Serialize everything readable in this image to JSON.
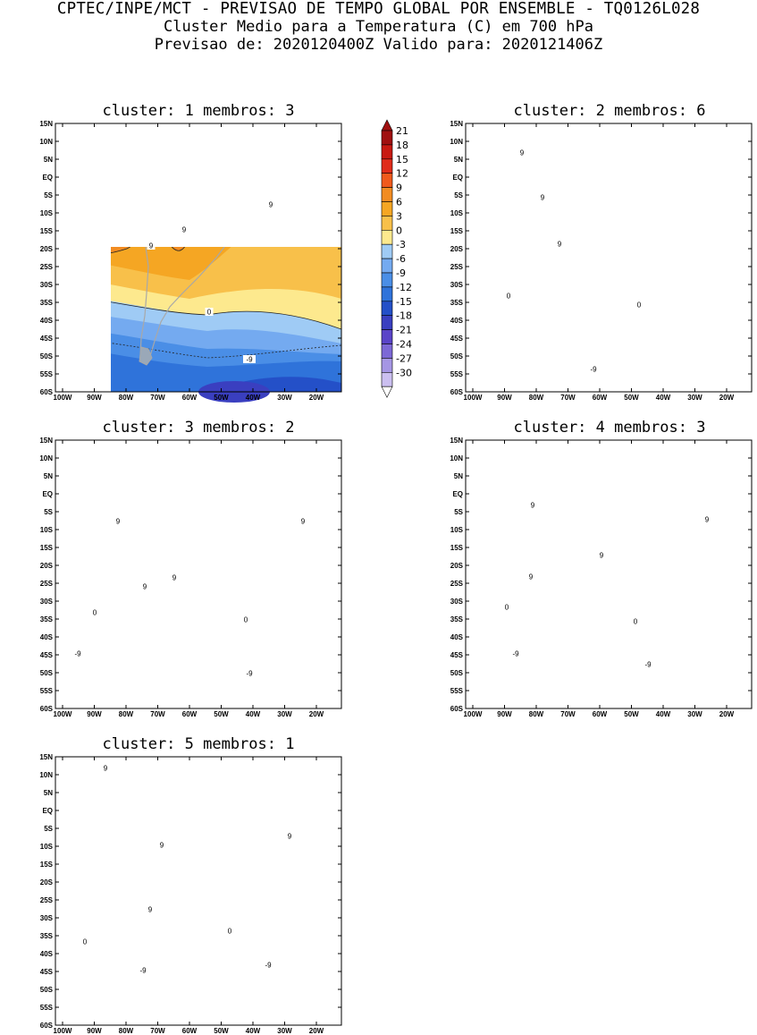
{
  "header": {
    "line1": "CPTEC/INPE/MCT - PREVISAO DE TEMPO GLOBAL POR ENSEMBLE - TQ0126L028",
    "line2": "Cluster Medio para a Temperatura (C) em 700 hPa",
    "line3": "Previsao de: 2020120400Z   Valido para: 2020121406Z"
  },
  "panels": [
    {
      "title": "cluster: 1   membros: 3"
    },
    {
      "title": "cluster: 2   membros: 6"
    },
    {
      "title": "cluster: 3   membros: 2"
    },
    {
      "title": "cluster: 4   membros: 3"
    },
    {
      "title": "cluster: 5   membros: 1"
    }
  ],
  "axes": {
    "lat_ticks": [
      "15N",
      "10N",
      "5N",
      "EQ",
      "5S",
      "10S",
      "15S",
      "20S",
      "25S",
      "30S",
      "35S",
      "40S",
      "45S",
      "50S",
      "55S",
      "60S"
    ],
    "lon_ticks": [
      "100W",
      "90W",
      "80W",
      "70W",
      "60W",
      "50W",
      "40W",
      "30W",
      "20W"
    ]
  },
  "colorbar": {
    "labels": [
      "21",
      "18",
      "15",
      "12",
      "9",
      "6",
      "3",
      "0",
      "-3",
      "-6",
      "-9",
      "-12",
      "-15",
      "-18",
      "-21",
      "-24",
      "-27",
      "-30"
    ],
    "colors": {
      "c21": "#a01010",
      "c18": "#c81a12",
      "c15": "#e02c1a",
      "c12": "#f05a1c",
      "c9": "#f28c22",
      "c6": "#f5a623",
      "c3": "#f8c04a",
      "c0": "#fde98e",
      "cm3": "#9fcbf5",
      "cm6": "#74aaf0",
      "cm9": "#4a8ee6",
      "cm12": "#2f73da",
      "cm15": "#2450c8",
      "cm18": "#3a3fc0",
      "cm21": "#5a44c8",
      "cm24": "#7c68d6",
      "cm27": "#a596e4",
      "cm30": "#cbbff0"
    }
  },
  "contour_labels": {
    "p1": [
      "9",
      "9",
      "9",
      "0",
      "-9"
    ],
    "p2": [
      "9",
      "9",
      "9",
      "0",
      "0",
      "-9"
    ],
    "p3": [
      "9",
      "9",
      "9",
      "9",
      "0",
      "0",
      "-9",
      "-9"
    ],
    "p4": [
      "9",
      "9",
      "9",
      "9",
      "9",
      "0",
      "0",
      "-9",
      "-9"
    ],
    "p5": [
      "9",
      "9",
      "9",
      "9",
      "0",
      "0",
      "-9",
      "-9"
    ]
  }
}
